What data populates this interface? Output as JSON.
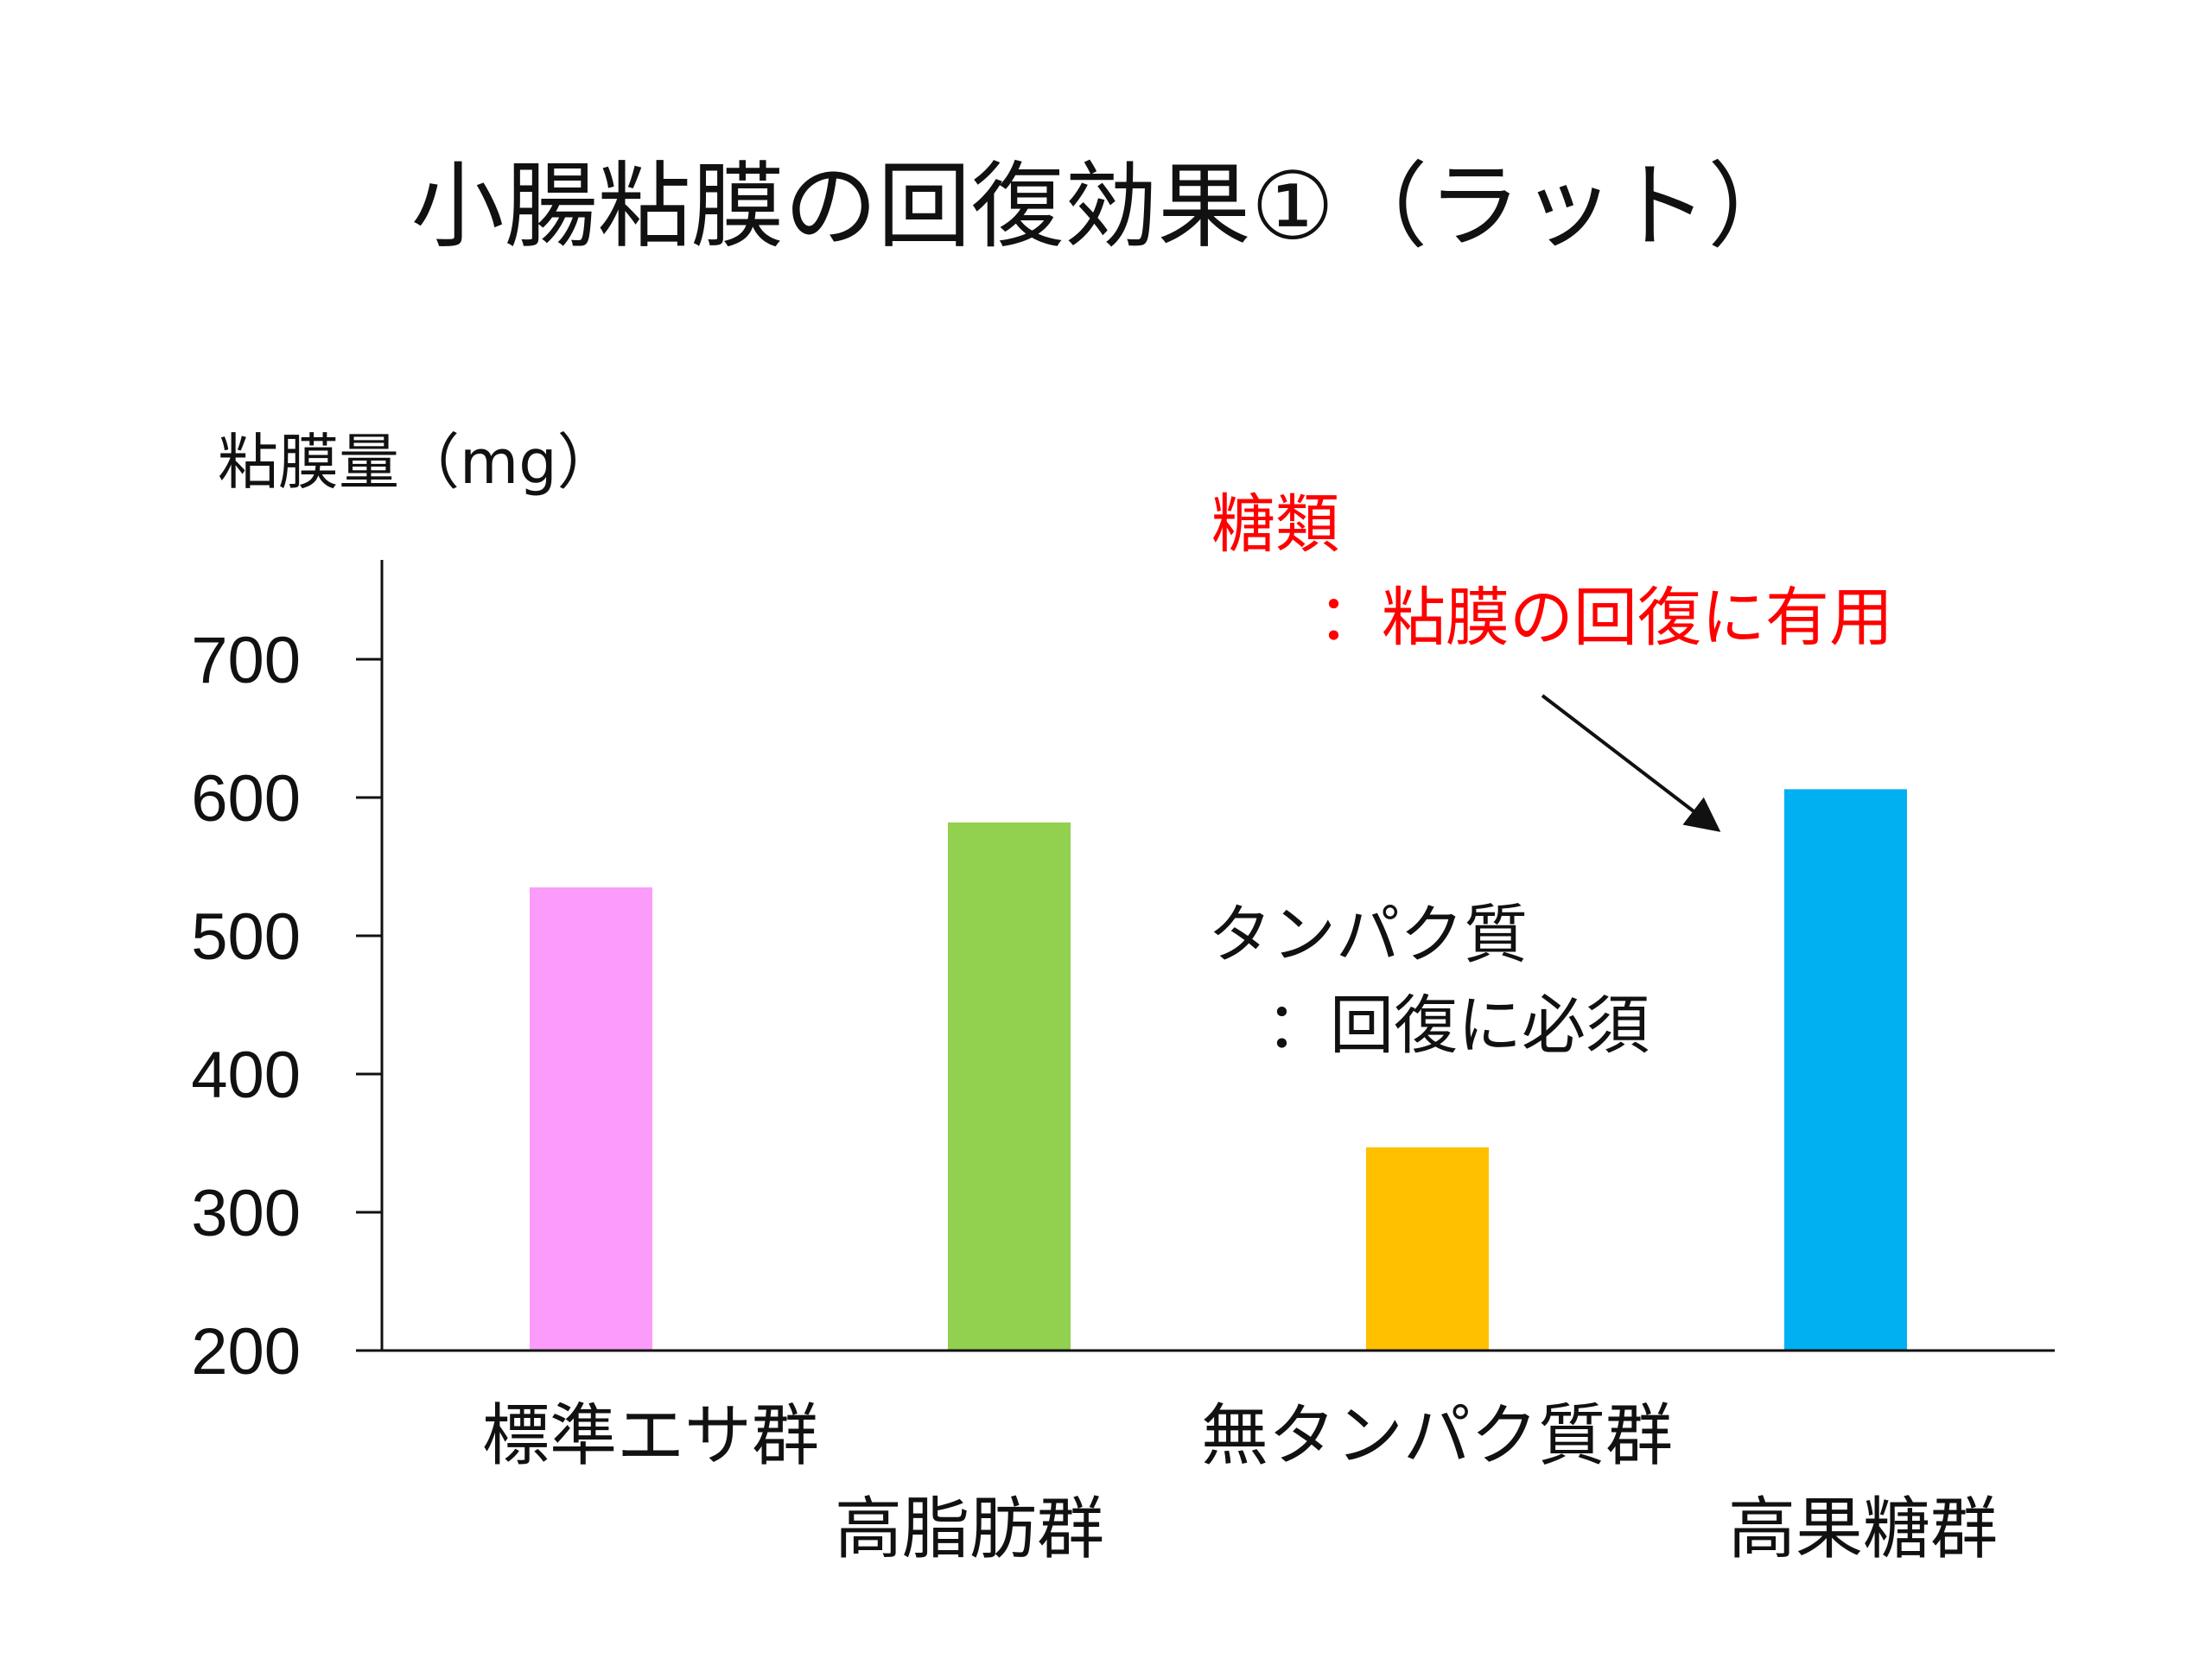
{
  "title": "小腸粘膜の回復効果①（ラット）",
  "annotations": {
    "sugar_line1": "糖類",
    "sugar_line2": "：粘膜の回復に有用",
    "protein_line1": "タンパク質",
    "protein_line2": "：回復に必須",
    "sugar_color": "#ff0000",
    "protein_color": "#111111"
  },
  "chart_data": {
    "type": "bar",
    "title": "",
    "xlabel": "",
    "ylabel": "粘膜量（mg）",
    "ylim": [
      200,
      770
    ],
    "yticks": [
      200,
      300,
      400,
      500,
      600,
      700
    ],
    "categories": [
      "標準エサ群",
      "高脂肪群",
      "無タンパク質群",
      "高果糖群"
    ],
    "values": [
      535,
      582,
      347,
      606
    ],
    "colors": [
      "#fb9cfb",
      "#92d050",
      "#ffc000",
      "#00b0f0"
    ],
    "grid": false,
    "legend": "none"
  }
}
